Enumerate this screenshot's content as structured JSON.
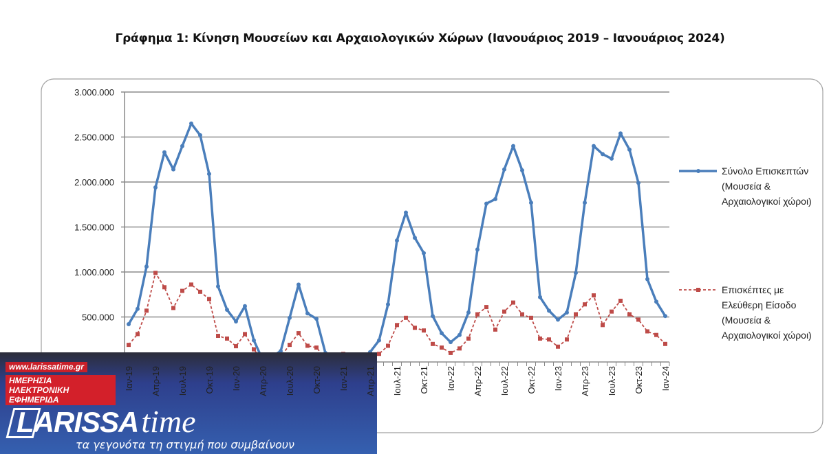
{
  "chart_data": {
    "type": "line",
    "title": "Γράφημα 1: Κίνηση Μουσείων και Αρχαιολογικών Χώρων (Ιανουάριος 2019 – Ιανουάριος 2024)",
    "xlabel": "",
    "ylabel": "",
    "ylim": [
      0,
      3000000
    ],
    "yticks": [
      "0",
      "500.000",
      "1.000.000",
      "1.500.000",
      "2.000.000",
      "2.500.000",
      "3.000.000"
    ],
    "grid": true,
    "legend_position": "right",
    "x_tick_labels": [
      "Ιαν-19",
      "Απρ-19",
      "Ιουλ-19",
      "Οκτ-19",
      "Ιαν-20",
      "Απρ-20",
      "Ιουλ-20",
      "Οκτ-20",
      "Ιαν-21",
      "Απρ-21",
      "Ιουλ-21",
      "Οκτ-21",
      "Ιαν-22",
      "Απρ-22",
      "Ιουλ-22",
      "Οκτ-22",
      "Ιαν-23",
      "Απρ-23",
      "Ιουλ-23",
      "Οκτ-23",
      "Ιαν-24"
    ],
    "x": [
      "2019-01",
      "2019-02",
      "2019-03",
      "2019-04",
      "2019-05",
      "2019-06",
      "2019-07",
      "2019-08",
      "2019-09",
      "2019-10",
      "2019-11",
      "2019-12",
      "2020-01",
      "2020-02",
      "2020-03",
      "2020-04",
      "2020-05",
      "2020-06",
      "2020-07",
      "2020-08",
      "2020-09",
      "2020-10",
      "2020-11",
      "2020-12",
      "2021-01",
      "2021-02",
      "2021-03",
      "2021-04",
      "2021-05",
      "2021-06",
      "2021-07",
      "2021-08",
      "2021-09",
      "2021-10",
      "2021-11",
      "2021-12",
      "2022-01",
      "2022-02",
      "2022-03",
      "2022-04",
      "2022-05",
      "2022-06",
      "2022-07",
      "2022-08",
      "2022-09",
      "2022-10",
      "2022-11",
      "2022-12",
      "2023-01",
      "2023-02",
      "2023-03",
      "2023-04",
      "2023-05",
      "2023-06",
      "2023-07",
      "2023-08",
      "2023-09",
      "2023-10",
      "2023-11",
      "2023-12",
      "2024-01"
    ],
    "series": [
      {
        "name": "Σύνολο Επισκεπτών (Μουσεία & Αρχαιολογικοί χώροι)",
        "color": "#4a7ebb",
        "style": "solid",
        "values": [
          420000,
          590000,
          1060000,
          1940000,
          2330000,
          2140000,
          2400000,
          2650000,
          2520000,
          2090000,
          840000,
          580000,
          450000,
          620000,
          240000,
          20000,
          60000,
          120000,
          490000,
          860000,
          540000,
          480000,
          100000,
          30000,
          30000,
          30000,
          40000,
          110000,
          240000,
          640000,
          1350000,
          1660000,
          1380000,
          1210000,
          510000,
          320000,
          220000,
          300000,
          550000,
          1250000,
          1760000,
          1810000,
          2140000,
          2400000,
          2130000,
          1770000,
          720000,
          570000,
          470000,
          550000,
          990000,
          1770000,
          2400000,
          2310000,
          2260000,
          2540000,
          2360000,
          1990000,
          920000,
          670000,
          510000
        ]
      },
      {
        "name": "Επισκέπτες με Ελεύθερη Είσοδο (Μουσεία & Αρχαιολογικοί χώροι)",
        "color": "#be4b48",
        "style": "dashed",
        "values": [
          190000,
          310000,
          570000,
          990000,
          830000,
          600000,
          790000,
          860000,
          780000,
          700000,
          290000,
          260000,
          175000,
          310000,
          140000,
          10000,
          30000,
          60000,
          190000,
          320000,
          180000,
          160000,
          40000,
          20000,
          90000,
          20000,
          30000,
          60000,
          90000,
          180000,
          410000,
          490000,
          380000,
          350000,
          200000,
          160000,
          100000,
          150000,
          260000,
          530000,
          610000,
          360000,
          560000,
          660000,
          530000,
          490000,
          260000,
          250000,
          170000,
          250000,
          530000,
          640000,
          740000,
          410000,
          560000,
          680000,
          530000,
          470000,
          340000,
          300000,
          200000
        ]
      }
    ]
  },
  "legend": {
    "series_1_label": "Σύνολο Επισκεπτών (Μουσεία & Αρχαιολογικοί χώροι)",
    "series_2_label": "Επισκέπτες με Ελεύθερη Είσοδο (Μουσεία & Αρχαιολογικοί χώροι)"
  },
  "logo": {
    "brand": "LARISSA",
    "brand_suffix": "time",
    "url": "www.larissatime.gr",
    "subtitle": "ΗΜΕΡΗΣΙΑ ΗΛΕΚΤΡΟΝΙΚΗ ΕΦΗΜΕΡΙΔΑ",
    "tagline": "τα γεγονότα τη στιγμή που συμβαίνουν"
  }
}
